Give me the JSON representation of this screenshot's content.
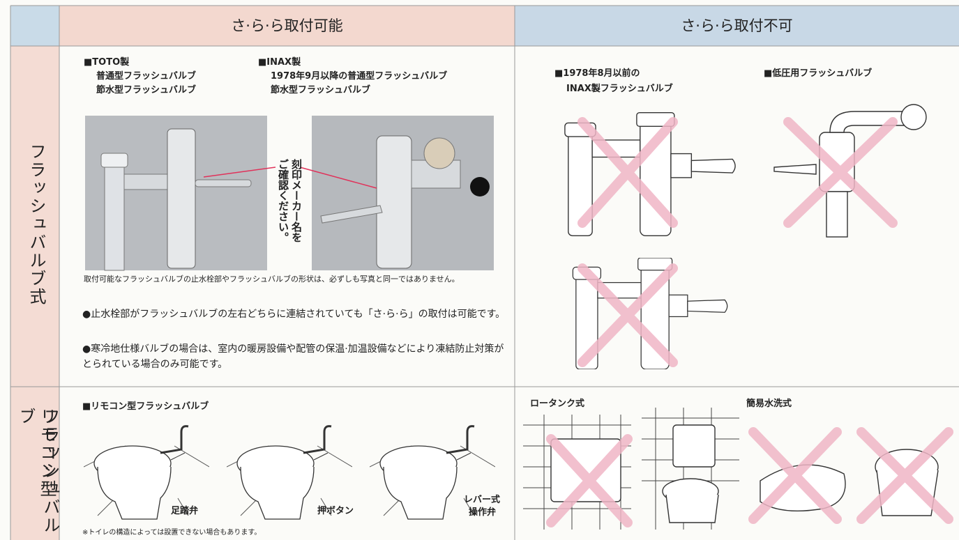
{
  "header": {
    "col_ok": "さ·ら·ら取付可能",
    "col_ng": "さ·ら·ら取付不可"
  },
  "row_labels": {
    "flush": "フラッシュバルブ式",
    "remote_lines": [
      "リモコン型",
      "フラッシュバルブ"
    ]
  },
  "flush_ok": {
    "toto": [
      "■TOTO製",
      "普通型フラッシュバルブ",
      "節水型フラッシュバルブ"
    ],
    "inax": [
      "■INAX製",
      "1978年9月以降の普通型フラッシュバルブ",
      "節水型フラッシュバルブ"
    ],
    "photo_note": [
      "刻印メーカー名を",
      "ご確認ください。"
    ],
    "caption": "取付可能なフラッシュバルブの止水栓部やフラッシュバルブの形状は、必ずしも写真と同一ではありません。",
    "bullets": [
      "●止水栓部がフラッシュバルブの左右どちらに連結されていても「さ·ら·ら」の取付は可能です。",
      "●寒冷地仕様バルブの場合は、室内の暖房設備や配管の保温·加温設備などにより凍結防止対策がとられている場合のみ可能です。"
    ]
  },
  "flush_ng": {
    "old_inax": [
      "■1978年8月以前の",
      "INAX製フラッシュバルブ"
    ],
    "low_pressure": "■低圧用フラッシュバルブ"
  },
  "remote_ok": {
    "title": "■リモコン型フラッシュバルブ",
    "labels": [
      "足踏弁",
      "押ボタン"
    ],
    "lever_lines": [
      "レバー式",
      "操作弁"
    ],
    "note": "※トイレの構造によっては設置できない場合もあります。"
  },
  "remote_ng": {
    "low_tank": "ロータンク式",
    "simple": "簡易水洗式"
  }
}
